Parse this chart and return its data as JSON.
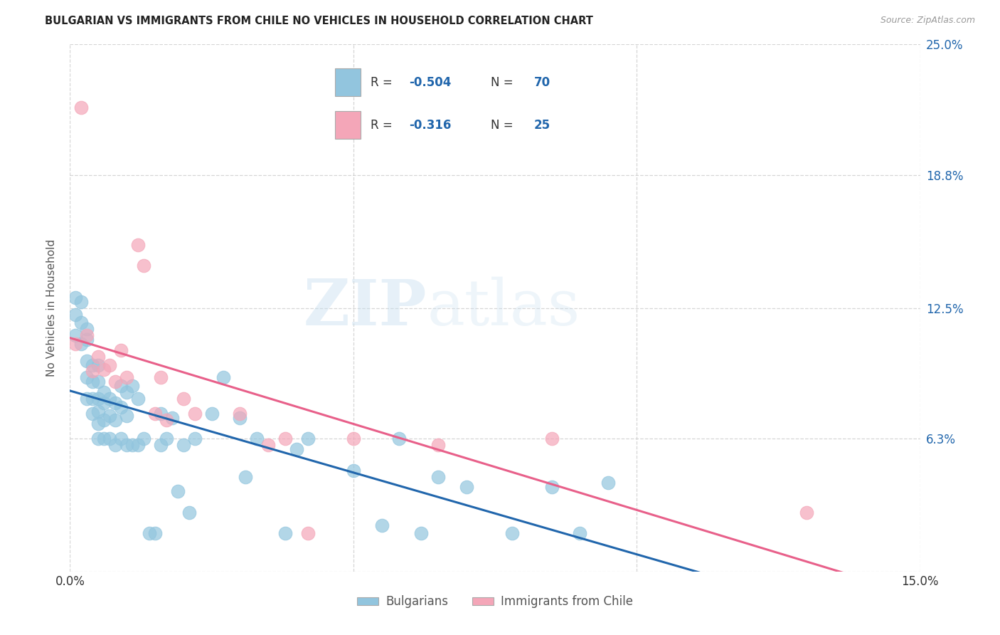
{
  "title": "BULGARIAN VS IMMIGRANTS FROM CHILE NO VEHICLES IN HOUSEHOLD CORRELATION CHART",
  "source": "Source: ZipAtlas.com",
  "ylabel": "No Vehicles in Household",
  "x_min": 0.0,
  "x_max": 0.15,
  "y_min": 0.0,
  "y_max": 0.25,
  "legend_label1": "Bulgarians",
  "legend_label2": "Immigrants from Chile",
  "r1": "-0.504",
  "n1": "70",
  "r2": "-0.316",
  "n2": "25",
  "color_blue": "#92c5de",
  "color_pink": "#f4a6b8",
  "line_color_blue": "#2166ac",
  "line_color_pink": "#e8608a",
  "watermark_zip": "ZIP",
  "watermark_atlas": "atlas",
  "bg_color": "#ffffff",
  "grid_color": "#cccccc",
  "blue_x": [
    0.001,
    0.001,
    0.001,
    0.002,
    0.002,
    0.002,
    0.003,
    0.003,
    0.003,
    0.003,
    0.003,
    0.004,
    0.004,
    0.004,
    0.004,
    0.005,
    0.005,
    0.005,
    0.005,
    0.005,
    0.005,
    0.006,
    0.006,
    0.006,
    0.006,
    0.007,
    0.007,
    0.007,
    0.008,
    0.008,
    0.008,
    0.009,
    0.009,
    0.009,
    0.01,
    0.01,
    0.01,
    0.011,
    0.011,
    0.012,
    0.012,
    0.013,
    0.014,
    0.015,
    0.016,
    0.016,
    0.017,
    0.018,
    0.019,
    0.02,
    0.021,
    0.022,
    0.025,
    0.027,
    0.03,
    0.031,
    0.033,
    0.038,
    0.04,
    0.042,
    0.05,
    0.055,
    0.058,
    0.062,
    0.065,
    0.07,
    0.078,
    0.085,
    0.09,
    0.095
  ],
  "blue_y": [
    0.13,
    0.122,
    0.112,
    0.128,
    0.118,
    0.108,
    0.115,
    0.11,
    0.1,
    0.092,
    0.082,
    0.098,
    0.09,
    0.082,
    0.075,
    0.098,
    0.09,
    0.082,
    0.076,
    0.07,
    0.063,
    0.085,
    0.08,
    0.072,
    0.063,
    0.082,
    0.074,
    0.063,
    0.08,
    0.072,
    0.06,
    0.088,
    0.078,
    0.063,
    0.085,
    0.074,
    0.06,
    0.088,
    0.06,
    0.082,
    0.06,
    0.063,
    0.018,
    0.018,
    0.075,
    0.06,
    0.063,
    0.073,
    0.038,
    0.06,
    0.028,
    0.063,
    0.075,
    0.092,
    0.073,
    0.045,
    0.063,
    0.018,
    0.058,
    0.063,
    0.048,
    0.022,
    0.063,
    0.018,
    0.045,
    0.04,
    0.018,
    0.04,
    0.018,
    0.042
  ],
  "pink_x": [
    0.001,
    0.002,
    0.003,
    0.004,
    0.005,
    0.006,
    0.007,
    0.008,
    0.009,
    0.01,
    0.012,
    0.013,
    0.015,
    0.016,
    0.017,
    0.02,
    0.022,
    0.03,
    0.035,
    0.038,
    0.042,
    0.05,
    0.065,
    0.085,
    0.13
  ],
  "pink_y": [
    0.108,
    0.22,
    0.112,
    0.095,
    0.102,
    0.096,
    0.098,
    0.09,
    0.105,
    0.092,
    0.155,
    0.145,
    0.075,
    0.092,
    0.072,
    0.082,
    0.075,
    0.075,
    0.06,
    0.063,
    0.018,
    0.063,
    0.06,
    0.063,
    0.028
  ]
}
